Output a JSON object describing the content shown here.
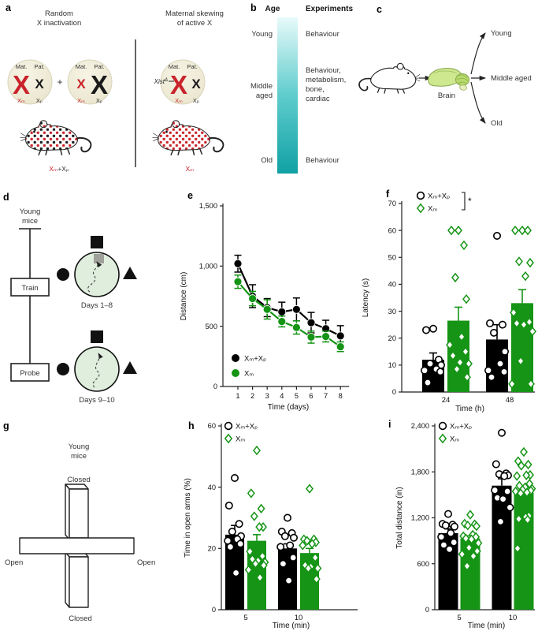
{
  "figure": {
    "background": "#ffffff"
  },
  "colors": {
    "red": "#c9242b",
    "black_series": "#000000",
    "green_series": "#159415",
    "teal_top": "#e8fafa",
    "teal_mid": "#5fcccd",
    "teal_bottom": "#10a1a4",
    "pool_fill": "#dfeedd",
    "brain_green": "#cde88e"
  },
  "panel_labels": {
    "a": "a",
    "b": "b",
    "c": "c",
    "d": "d",
    "e": "e",
    "f": "f",
    "g": "g",
    "h": "h",
    "i": "i"
  },
  "panels": {
    "a": {
      "left_title_line1": "Random",
      "left_title_line2": "X inactivation",
      "right_title_line1": "Maternal skewing",
      "right_title_line2": "of active X",
      "mat": "Mat.",
      "pat": "Pat.",
      "plus": "+",
      "x_big": "X",
      "xm": "Xₘ",
      "xp": "Xₚ",
      "xist": "Xist",
      "xist_sup": "Δ",
      "left_mouse_label_red": "Xₘ",
      "left_mouse_label_black": "+Xₚ",
      "right_mouse_label": "Xₘ"
    },
    "b": {
      "age_header": "Age",
      "experiments_header": "Experiments",
      "rows": [
        {
          "age_lines": [
            "Young"
          ],
          "exp_lines": [
            "Behaviour"
          ]
        },
        {
          "age_lines": [
            "Middle",
            "aged"
          ],
          "exp_lines": [
            "Behaviour,",
            "metabolism,",
            "bone,",
            "cardiac"
          ]
        },
        {
          "age_lines": [
            "Old"
          ],
          "exp_lines": [
            "Behaviour"
          ]
        }
      ]
    },
    "c": {
      "brain_label": "Brain",
      "targets": [
        "Young",
        "Middle aged",
        "Old"
      ]
    },
    "d": {
      "subject_line1": "Young",
      "subject_line2": "mice",
      "train": "Train",
      "probe": "Probe",
      "pool1_caption": "Days 1–8",
      "pool2_caption": "Days 9–10"
    },
    "g": {
      "subject_line1": "Young",
      "subject_line2": "mice",
      "closed_top": "Closed",
      "closed_bottom": "Closed",
      "open_left": "Open",
      "open_right": "Open"
    }
  },
  "chart_data": [
    {
      "panel": "e",
      "type": "line",
      "xlabel": "Time (days)",
      "ylabel": "Distance (cm)",
      "x": [
        1,
        2,
        3,
        4,
        5,
        6,
        7,
        8
      ],
      "ylim": [
        0,
        1500
      ],
      "yticks": [
        0,
        500,
        1000,
        1500
      ],
      "ytick_labels": [
        "0",
        "500",
        "1,000",
        "1,500"
      ],
      "legend_position": "inside-bottom-left",
      "series": [
        {
          "name": "Xₘ+Xₚ",
          "color": "#000000",
          "marker": "circle",
          "values": [
            1020,
            750,
            655,
            620,
            640,
            530,
            480,
            420
          ],
          "errors": [
            70,
            95,
            75,
            80,
            95,
            85,
            70,
            85
          ]
        },
        {
          "name": "Xₘ",
          "color": "#159415",
          "marker": "circle",
          "values": [
            870,
            730,
            640,
            540,
            490,
            410,
            415,
            330
          ],
          "errors": [
            55,
            60,
            80,
            45,
            55,
            50,
            45,
            40
          ]
        }
      ]
    },
    {
      "panel": "f",
      "type": "bar-scatter",
      "xlabel": "Time (h)",
      "ylabel": "Latency (s)",
      "categories": [
        "24",
        "48"
      ],
      "ylim": [
        0,
        70
      ],
      "yticks": [
        0,
        10,
        20,
        30,
        40,
        50,
        60,
        70
      ],
      "ytick_labels": [
        "0",
        "10",
        "20",
        "30",
        "40",
        "50",
        "60",
        "70"
      ],
      "significance": "*",
      "legend_position": "top-left",
      "series": [
        {
          "name": "Xₘ+Xₚ",
          "color": "#000000",
          "marker": "circle",
          "means": [
            12,
            19.5
          ],
          "errors": [
            2.5,
            5.5
          ],
          "points": [
            [
              23.5,
              23,
              12,
              10.5,
              10,
              8.5,
              8,
              7.5,
              3.5
            ],
            [
              58,
              25.5,
              25,
              22,
              15,
              10.5,
              8,
              7.5,
              5.5
            ]
          ]
        },
        {
          "name": "Xₘ",
          "color": "#159415",
          "marker": "diamond",
          "means": [
            26.5,
            33
          ],
          "errors": [
            5,
            5
          ],
          "points": [
            [
              60,
              60,
              54.5,
              42.5,
              34.5,
              20.5,
              17.5,
              15,
              13.5,
              11,
              10.5,
              8.5,
              5.5
            ],
            [
              60,
              60,
              60,
              48.5,
              48,
              43,
              29.5,
              26,
              25.5,
              25,
              22.5,
              11.5,
              3,
              3
            ]
          ]
        }
      ]
    },
    {
      "panel": "h",
      "type": "bar-scatter",
      "xlabel": "Time (min)",
      "ylabel": "Time in open arms (%)",
      "categories": [
        "5",
        "10"
      ],
      "ylim": [
        0,
        60
      ],
      "yticks": [
        0,
        20,
        40,
        60
      ],
      "ytick_labels": [
        "0",
        "20",
        "40",
        "60"
      ],
      "legend_position": "top-left",
      "series": [
        {
          "name": "Xₘ+Xₚ",
          "color": "#000000",
          "marker": "circle",
          "means": [
            24.5,
            20
          ],
          "errors": [
            3,
            1.5
          ],
          "points": [
            [
              43,
              34,
              28,
              25.5,
              24,
              23,
              22.5,
              21.5,
              20.5,
              12
            ],
            [
              30,
              25.5,
              25,
              24,
              23.5,
              21,
              20.5,
              17,
              15,
              9.5
            ]
          ]
        },
        {
          "name": "Xₘ",
          "color": "#159415",
          "marker": "diamond",
          "means": [
            22.5,
            18.5
          ],
          "errors": [
            2,
            1.5
          ],
          "points": [
            [
              52,
              38,
              33,
              30.5,
              27,
              27,
              19,
              17.5,
              16.5,
              16,
              15.5,
              15,
              14.5,
              13,
              10.5
            ],
            [
              39.5,
              23,
              23,
              22.5,
              22,
              21.5,
              21,
              17,
              14.5,
              14,
              13.5,
              13.5,
              10
            ]
          ]
        }
      ]
    },
    {
      "panel": "i",
      "type": "bar-scatter",
      "xlabel": "Time (min)",
      "ylabel": "Total distance (in)",
      "categories": [
        "5",
        "10"
      ],
      "ylim": [
        0,
        2400
      ],
      "yticks": [
        0,
        600,
        1200,
        1800,
        2400
      ],
      "ytick_labels": [
        "0",
        "600",
        "1,200",
        "1,800",
        "2,400"
      ],
      "legend_position": "top-left",
      "series": [
        {
          "name": "Xₘ+Xₚ",
          "color": "#000000",
          "marker": "circle",
          "means": [
            1000,
            1620
          ],
          "errors": [
            55,
            90
          ],
          "points": [
            [
              1250,
              1120,
              1110,
              1100,
              1085,
              1000,
              950,
              880,
              845,
              790
            ],
            [
              2310,
              1900,
              1780,
              1770,
              1755,
              1745,
              1560,
              1545,
              1460,
              1445,
              1335,
              1150
            ]
          ]
        },
        {
          "name": "Xₘ",
          "color": "#159415",
          "marker": "diamond",
          "means": [
            930,
            1530
          ],
          "errors": [
            35,
            45
          ],
          "points": [
            [
              1240,
              1125,
              1115,
              1100,
              1090,
              980,
              960,
              950,
              930,
              920,
              870,
              810,
              765,
              725,
              700,
              570
            ],
            [
              2060,
              1940,
              1895,
              1880,
              1760,
              1755,
              1745,
              1645,
              1620,
              1600,
              1580,
              1565,
              1555,
              1545,
              1530,
              1520,
              1225,
              1210,
              1185,
              1175,
              800
            ]
          ]
        }
      ]
    }
  ]
}
